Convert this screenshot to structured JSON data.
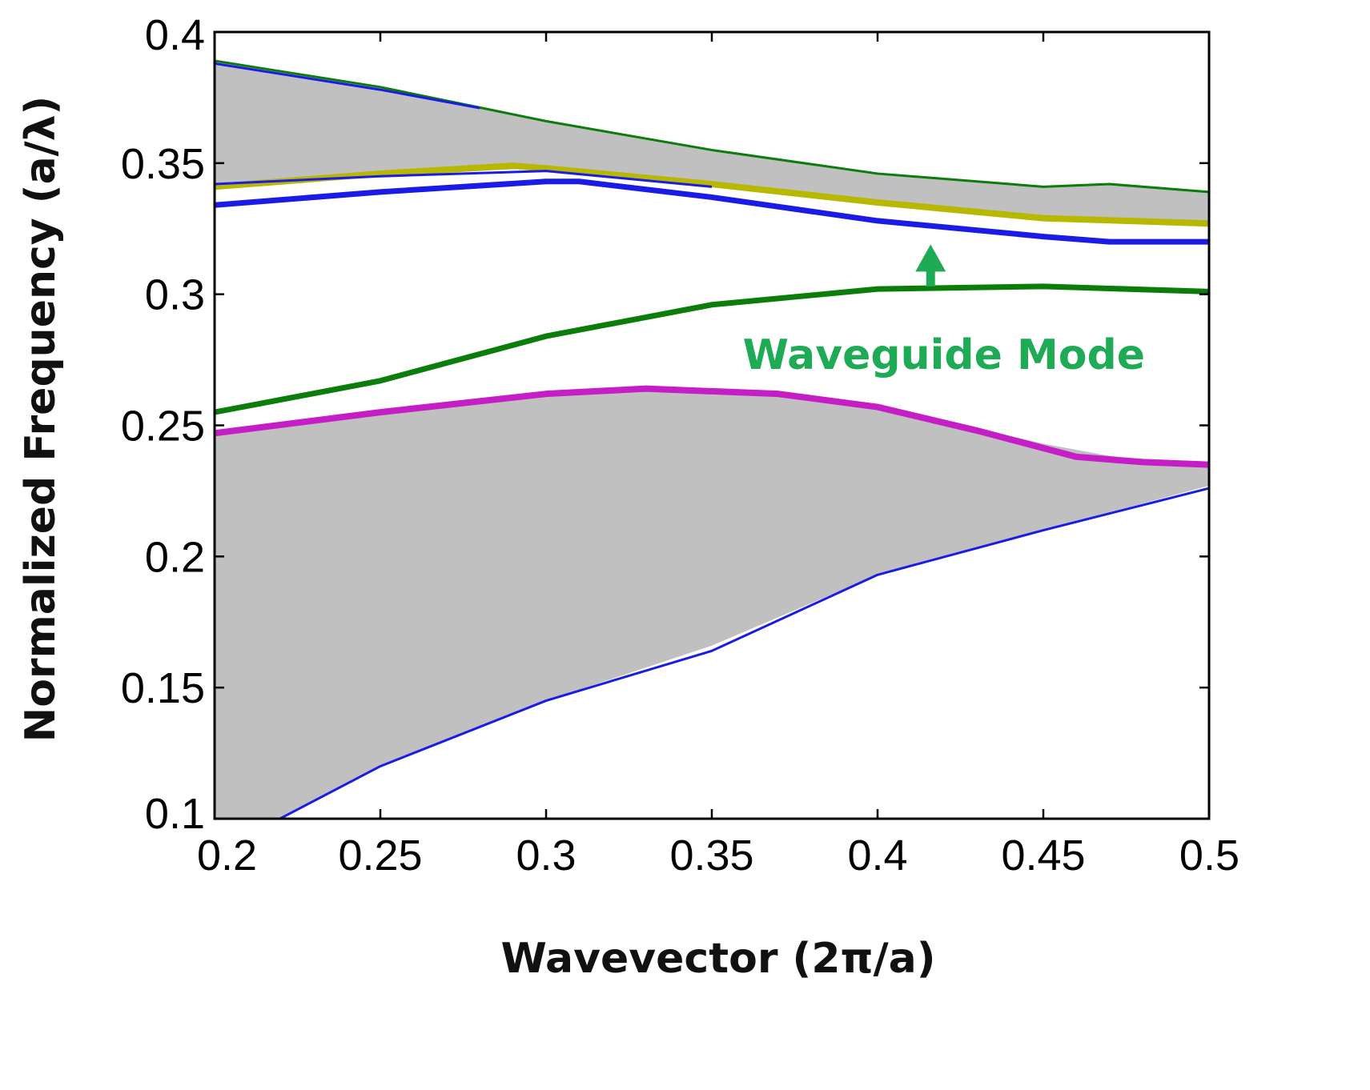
{
  "chart_data": {
    "type": "line",
    "title": "",
    "xlabel": "Wavevector (2π/a)",
    "ylabel": "Normalized Frequency (a/λ)",
    "xlim": [
      0.2,
      0.5
    ],
    "ylim": [
      0.1,
      0.4
    ],
    "xticks": [
      "0.2",
      "0.25",
      "0.3",
      "0.35",
      "0.4",
      "0.45",
      "0.5"
    ],
    "yticks": [
      "0.1",
      "0.15",
      "0.2",
      "0.25",
      "0.3",
      "0.35",
      "0.4"
    ],
    "grid": false,
    "legend": "none",
    "bands": [
      {
        "color": "#c0c0c0",
        "upper": [
          [
            0.2,
            0.246
          ],
          [
            0.25,
            0.256
          ],
          [
            0.3,
            0.263
          ],
          [
            0.35,
            0.264
          ],
          [
            0.4,
            0.258
          ],
          [
            0.45,
            0.243
          ],
          [
            0.48,
            0.236
          ],
          [
            0.5,
            0.235
          ]
        ],
        "lower": [
          [
            0.2,
            0.087
          ],
          [
            0.25,
            0.12
          ],
          [
            0.3,
            0.145
          ],
          [
            0.35,
            0.166
          ],
          [
            0.4,
            0.193
          ],
          [
            0.45,
            0.21
          ],
          [
            0.5,
            0.227
          ]
        ]
      },
      {
        "color": "#c0c0c0",
        "upper": [
          [
            0.2,
            0.389
          ],
          [
            0.25,
            0.379
          ],
          [
            0.3,
            0.366
          ],
          [
            0.35,
            0.355
          ],
          [
            0.4,
            0.346
          ],
          [
            0.45,
            0.341
          ],
          [
            0.47,
            0.342
          ],
          [
            0.5,
            0.339
          ]
        ],
        "lower": [
          [
            0.2,
            0.341
          ],
          [
            0.25,
            0.346
          ],
          [
            0.3,
            0.348
          ],
          [
            0.35,
            0.342
          ],
          [
            0.4,
            0.335
          ],
          [
            0.45,
            0.329
          ],
          [
            0.5,
            0.327
          ]
        ]
      }
    ],
    "series": [
      {
        "color": "#0a7d0a",
        "width": 7,
        "values": [
          [
            0.2,
            0.255
          ],
          [
            0.25,
            0.267
          ],
          [
            0.3,
            0.284
          ],
          [
            0.35,
            0.296
          ],
          [
            0.4,
            0.302
          ],
          [
            0.45,
            0.303
          ],
          [
            0.5,
            0.301
          ]
        ]
      },
      {
        "color": "#c61ec6",
        "width": 8,
        "values": [
          [
            0.2,
            0.247
          ],
          [
            0.25,
            0.255
          ],
          [
            0.3,
            0.262
          ],
          [
            0.33,
            0.264
          ],
          [
            0.37,
            0.262
          ],
          [
            0.4,
            0.257
          ],
          [
            0.43,
            0.248
          ],
          [
            0.46,
            0.238
          ],
          [
            0.48,
            0.236
          ],
          [
            0.5,
            0.235
          ]
        ]
      },
      {
        "color": "#1b1be6",
        "width": 3,
        "values": [
          [
            0.2,
            0.087
          ],
          [
            0.25,
            0.12
          ],
          [
            0.3,
            0.145
          ],
          [
            0.35,
            0.164
          ],
          [
            0.4,
            0.193
          ],
          [
            0.45,
            0.21
          ],
          [
            0.5,
            0.226
          ]
        ]
      },
      {
        "color": "#0a7d0a",
        "width": 3,
        "values": [
          [
            0.2,
            0.389
          ],
          [
            0.25,
            0.379
          ],
          [
            0.3,
            0.366
          ],
          [
            0.35,
            0.355
          ],
          [
            0.4,
            0.346
          ],
          [
            0.45,
            0.341
          ],
          [
            0.47,
            0.342
          ],
          [
            0.5,
            0.339
          ]
        ]
      },
      {
        "color": "#1b1be6",
        "width": 3,
        "values": [
          [
            0.2,
            0.388
          ],
          [
            0.25,
            0.378
          ],
          [
            0.28,
            0.371
          ]
        ]
      },
      {
        "color": "#b8b800",
        "width": 8,
        "values": [
          [
            0.2,
            0.341
          ],
          [
            0.25,
            0.346
          ],
          [
            0.29,
            0.349
          ],
          [
            0.3,
            0.348
          ],
          [
            0.35,
            0.342
          ],
          [
            0.4,
            0.335
          ],
          [
            0.45,
            0.329
          ],
          [
            0.5,
            0.327
          ]
        ]
      },
      {
        "color": "#1b1be6",
        "width": 3,
        "values": [
          [
            0.2,
            0.342
          ],
          [
            0.25,
            0.345
          ],
          [
            0.3,
            0.347
          ],
          [
            0.35,
            0.341
          ]
        ]
      },
      {
        "color": "#1b1be6",
        "width": 7,
        "values": [
          [
            0.2,
            0.334
          ],
          [
            0.25,
            0.339
          ],
          [
            0.3,
            0.343
          ],
          [
            0.31,
            0.343
          ],
          [
            0.35,
            0.337
          ],
          [
            0.4,
            0.328
          ],
          [
            0.45,
            0.322
          ],
          [
            0.47,
            0.32
          ],
          [
            0.5,
            0.32
          ]
        ]
      }
    ],
    "annotations": [
      {
        "text": "Waveguide Mode",
        "x": 0.42,
        "y": 0.277,
        "color": "#1faa55"
      }
    ],
    "arrows": [
      {
        "from": [
          0.416,
          0.303
        ],
        "to": [
          0.416,
          0.319
        ],
        "color": "#1faa55"
      }
    ]
  }
}
